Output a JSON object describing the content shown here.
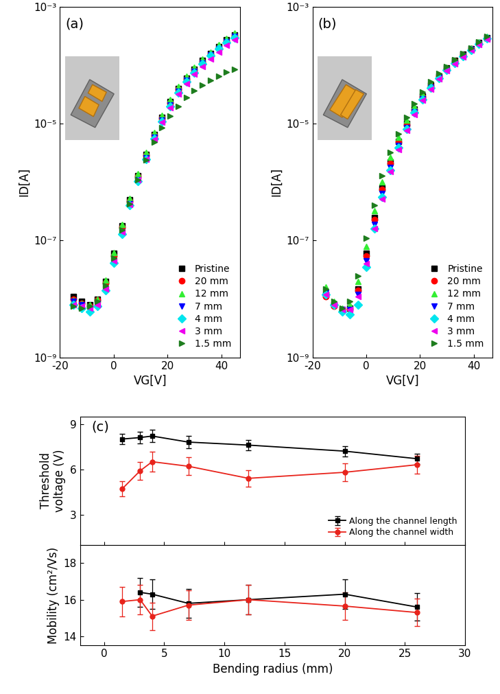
{
  "chart_data": [
    {
      "type": "line",
      "annotations": [
        "(a)"
      ],
      "x_label": "VG[V]",
      "y_label": "ID[A]",
      "log": "y",
      "xlim": [
        -20,
        47
      ],
      "xticks": [
        -20,
        0,
        20,
        40
      ],
      "ylim": [
        1e-09,
        0.001
      ],
      "yticks": [
        {
          "value": 1e-09,
          "label": "10⁻⁹"
        },
        {
          "value": 1e-07,
          "label": "10⁻⁷"
        },
        {
          "value": 1e-05,
          "label": "10⁻⁵"
        },
        {
          "value": 0.001,
          "label": "10⁻³"
        }
      ],
      "legend": "lower right",
      "line_style": "none",
      "x": [
        -15,
        -12,
        -9,
        -6,
        -3,
        0,
        3,
        6,
        9,
        12,
        15,
        18,
        21,
        24,
        27,
        30,
        33,
        36,
        39,
        42,
        45
      ],
      "series": [
        {
          "name": "Pristine",
          "color": "#000000",
          "marker": "square",
          "values": [
            1.1e-08,
            9e-09,
            8e-09,
            1e-08,
            2e-08,
            6e-08,
            1.8e-07,
            5e-07,
            1.3e-06,
            3e-06,
            6.5e-06,
            1.3e-05,
            2.4e-05,
            4e-05,
            6e-05,
            8.5e-05,
            0.00012,
            0.00016,
            0.00021,
            0.00027,
            0.00033
          ]
        },
        {
          "name": "20 mm",
          "color": "#ff0000",
          "marker": "circle",
          "values": [
            1e-08,
            8.5e-09,
            7.5e-09,
            9.5e-09,
            1.9e-08,
            5.5e-08,
            1.7e-07,
            4.8e-07,
            1.25e-06,
            2.9e-06,
            6.3e-06,
            1.25e-05,
            2.3e-05,
            3.9e-05,
            5.9e-05,
            8.3e-05,
            0.000115,
            0.000155,
            0.0002,
            0.00026,
            0.00032
          ]
        },
        {
          "name": "12 mm",
          "color": "#33ee33",
          "marker": "triangle_up",
          "values": [
            9.5e-09,
            8.5e-09,
            8e-09,
            1e-08,
            2.1e-08,
            6.2e-08,
            1.9e-07,
            5.3e-07,
            1.4e-06,
            3.2e-06,
            7e-06,
            1.4e-05,
            2.6e-05,
            4.3e-05,
            6.5e-05,
            9.2e-05,
            0.00013,
            0.00017,
            0.000225,
            0.00029,
            0.00036
          ]
        },
        {
          "name": "7 mm",
          "color": "#0000ff",
          "marker": "triangle_down",
          "values": [
            9e-09,
            8e-09,
            7e-09,
            8.5e-09,
            1.5e-08,
            4.5e-08,
            1.4e-07,
            4.2e-07,
            1.1e-06,
            2.6e-06,
            5.8e-06,
            1.15e-05,
            2.1e-05,
            3.6e-05,
            5.5e-05,
            7.8e-05,
            0.00011,
            0.00015,
            0.000195,
            0.00025,
            0.00031
          ]
        },
        {
          "name": "4 mm",
          "color": "#00e5ee",
          "marker": "diamond",
          "values": [
            8e-09,
            7e-09,
            6e-09,
            7.5e-09,
            1.4e-08,
            4.2e-08,
            1.3e-07,
            4e-07,
            1.05e-06,
            2.5e-06,
            5.6e-06,
            1.1e-05,
            2e-05,
            3.4e-05,
            5.3e-05,
            7.5e-05,
            0.000105,
            0.000145,
            0.00019,
            0.000245,
            0.0003
          ]
        },
        {
          "name": "3 mm",
          "color": "#ee00ee",
          "marker": "triangle_left",
          "values": [
            8e-09,
            7.5e-09,
            7e-09,
            8e-09,
            1.5e-08,
            4.5e-08,
            1.4e-07,
            4.1e-07,
            1.1e-06,
            2.5e-06,
            5.4e-06,
            1.05e-05,
            1.9e-05,
            3.2e-05,
            4.9e-05,
            7e-05,
            9.5e-05,
            0.00013,
            0.00017,
            0.00022,
            0.00027
          ]
        },
        {
          "name": "1.5 mm",
          "color": "#1e7d1e",
          "marker": "triangle_right",
          "values": [
            7.5e-09,
            7e-09,
            7.5e-09,
            9e-09,
            1.7e-08,
            5e-08,
            1.5e-07,
            4.3e-07,
            1.1e-06,
            2.4e-06,
            4.8e-06,
            8.5e-06,
            1.35e-05,
            2e-05,
            2.8e-05,
            3.7e-05,
            4.6e-05,
            5.6e-05,
            6.6e-05,
            7.6e-05,
            8.5e-05
          ]
        }
      ]
    },
    {
      "type": "line",
      "annotations": [
        "(b)"
      ],
      "x_label": "VG[V]",
      "y_label": "ID[A]",
      "log": "y",
      "xlim": [
        -20,
        47
      ],
      "xticks": [
        -20,
        0,
        20,
        40
      ],
      "ylim": [
        1e-09,
        0.001
      ],
      "yticks": [
        {
          "value": 1e-09,
          "label": "10⁻⁹"
        },
        {
          "value": 1e-07,
          "label": "10⁻⁷"
        },
        {
          "value": 1e-05,
          "label": "10⁻⁵"
        },
        {
          "value": 0.001,
          "label": "10⁻³"
        }
      ],
      "legend": "lower right",
      "line_style": "none",
      "x": [
        -15,
        -12,
        -9,
        -6,
        -3,
        0,
        3,
        6,
        9,
        12,
        15,
        18,
        21,
        24,
        27,
        30,
        33,
        36,
        39,
        42,
        45
      ],
      "series": [
        {
          "name": "Pristine",
          "color": "#000000",
          "marker": "square",
          "values": [
            1.2e-08,
            8e-09,
            6.5e-09,
            7e-09,
            1.5e-08,
            6e-08,
            2.5e-07,
            8e-07,
            2.2e-06,
            5e-06,
            1e-05,
            1.8e-05,
            3e-05,
            4.6e-05,
            6.6e-05,
            9e-05,
            0.00012,
            0.000155,
            0.000195,
            0.000245,
            0.0003
          ]
        },
        {
          "name": "20 mm",
          "color": "#ff0000",
          "marker": "circle",
          "values": [
            1.1e-08,
            7.5e-09,
            6.5e-09,
            6.8e-09,
            1.4e-08,
            5.5e-08,
            2.3e-07,
            7.5e-07,
            2.1e-06,
            4.8e-06,
            9.6e-06,
            1.75e-05,
            2.9e-05,
            4.5e-05,
            6.5e-05,
            8.8e-05,
            0.000117,
            0.00015,
            0.00019,
            0.00024,
            0.00029
          ]
        },
        {
          "name": "12 mm",
          "color": "#33ee33",
          "marker": "triangle_up",
          "values": [
            1.6e-08,
            9e-09,
            7e-09,
            8e-09,
            2e-08,
            8e-08,
            3.2e-07,
            1e-06,
            2.7e-06,
            5.8e-06,
            1.15e-05,
            2e-05,
            3.2e-05,
            4.9e-05,
            6.9e-05,
            9.3e-05,
            0.000122,
            0.000157,
            0.000198,
            0.00025,
            0.00031
          ]
        },
        {
          "name": "7 mm",
          "color": "#0000ff",
          "marker": "triangle_down",
          "values": [
            1.3e-08,
            8e-09,
            6.5e-09,
            6.5e-09,
            1.2e-08,
            4.5e-08,
            1.9e-07,
            6.3e-07,
            1.8e-06,
            4.2e-06,
            8.6e-06,
            1.6e-05,
            2.7e-05,
            4.2e-05,
            6.1e-05,
            8.4e-05,
            0.000112,
            0.000145,
            0.000185,
            0.000235,
            0.00029
          ]
        },
        {
          "name": "4 mm",
          "color": "#00e5ee",
          "marker": "diamond",
          "values": [
            1.2e-08,
            8e-09,
            6e-09,
            5.5e-09,
            8e-09,
            3.5e-08,
            1.6e-07,
            5.5e-07,
            1.6e-06,
            3.9e-06,
            8.2e-06,
            1.55e-05,
            2.6e-05,
            4.1e-05,
            6e-05,
            8.3e-05,
            0.00011,
            0.000143,
            0.000183,
            0.00023,
            0.000285
          ]
        },
        {
          "name": "3 mm",
          "color": "#ee00ee",
          "marker": "triangle_left",
          "values": [
            1.2e-08,
            8e-09,
            6.5e-09,
            6.5e-09,
            1.1e-08,
            4e-08,
            1.6e-07,
            5.2e-07,
            1.5e-06,
            3.6e-06,
            7.6e-06,
            1.45e-05,
            2.5e-05,
            3.9e-05,
            5.8e-05,
            8e-05,
            0.000107,
            0.00014,
            0.00018,
            0.000225,
            0.00028
          ]
        },
        {
          "name": "1.5 mm",
          "color": "#1e7d1e",
          "marker": "triangle_right",
          "values": [
            1.5e-08,
            9e-09,
            7e-09,
            9e-09,
            2.5e-08,
            1.1e-07,
            4e-07,
            1.3e-06,
            3.2e-06,
            6.8e-06,
            1.3e-05,
            2.2e-05,
            3.5e-05,
            5.2e-05,
            7.2e-05,
            9.6e-05,
            0.000125,
            0.00016,
            0.0002,
            0.00025,
            0.00031
          ]
        }
      ]
    },
    {
      "type": "line",
      "annotations": [
        "(c)"
      ],
      "y_label": "Threshold\nvoltage (V)",
      "xlim": [
        -2,
        30
      ],
      "xticks": [
        0,
        5,
        10,
        15,
        20,
        25,
        30
      ],
      "tick_labels": "y",
      "ylim": [
        1,
        9.5
      ],
      "yticks": [
        3,
        6,
        9
      ],
      "legend": "lower right",
      "line_style": "solid",
      "x": [
        1.5,
        3,
        4,
        7,
        12,
        20,
        26
      ],
      "series": [
        {
          "name": "Along the channel length",
          "color": "#000000",
          "marker": "square",
          "values": [
            8.0,
            8.1,
            8.2,
            7.8,
            7.6,
            7.2,
            6.7
          ],
          "errors": [
            0.35,
            0.4,
            0.4,
            0.4,
            0.35,
            0.35,
            0.35
          ]
        },
        {
          "name": "Along the channel width",
          "color": "#e8231b",
          "marker": "circle",
          "values": [
            4.7,
            5.9,
            6.5,
            6.2,
            5.4,
            5.8,
            6.3
          ],
          "errors": [
            0.5,
            0.6,
            0.65,
            0.6,
            0.55,
            0.6,
            0.6
          ]
        }
      ]
    },
    {
      "type": "line",
      "x_label": "Bending radius (mm)",
      "y_label": "Mobility (cm²/Vs)",
      "xlim": [
        -2,
        30
      ],
      "xticks": [
        0,
        5,
        10,
        15,
        20,
        25,
        30
      ],
      "ylim": [
        13.5,
        19
      ],
      "yticks": [
        14,
        16,
        18
      ],
      "line_style": "solid",
      "x": [
        1.5,
        3,
        4,
        7,
        12,
        20,
        26
      ],
      "series": [
        {
          "name": "Along the channel length",
          "color": "#000000",
          "marker": "square",
          "values": [
            null,
            16.4,
            16.3,
            15.8,
            16.0,
            16.3,
            15.6
          ],
          "errors": [
            null,
            0.8,
            0.8,
            0.8,
            0.8,
            0.8,
            0.75
          ]
        },
        {
          "name": "Along the channel width",
          "color": "#e8231b",
          "marker": "circle",
          "values": [
            15.9,
            16.0,
            15.1,
            15.7,
            16.0,
            15.65,
            15.3
          ],
          "errors": [
            0.8,
            0.8,
            0.75,
            0.8,
            0.8,
            0.75,
            0.75
          ]
        }
      ]
    }
  ]
}
